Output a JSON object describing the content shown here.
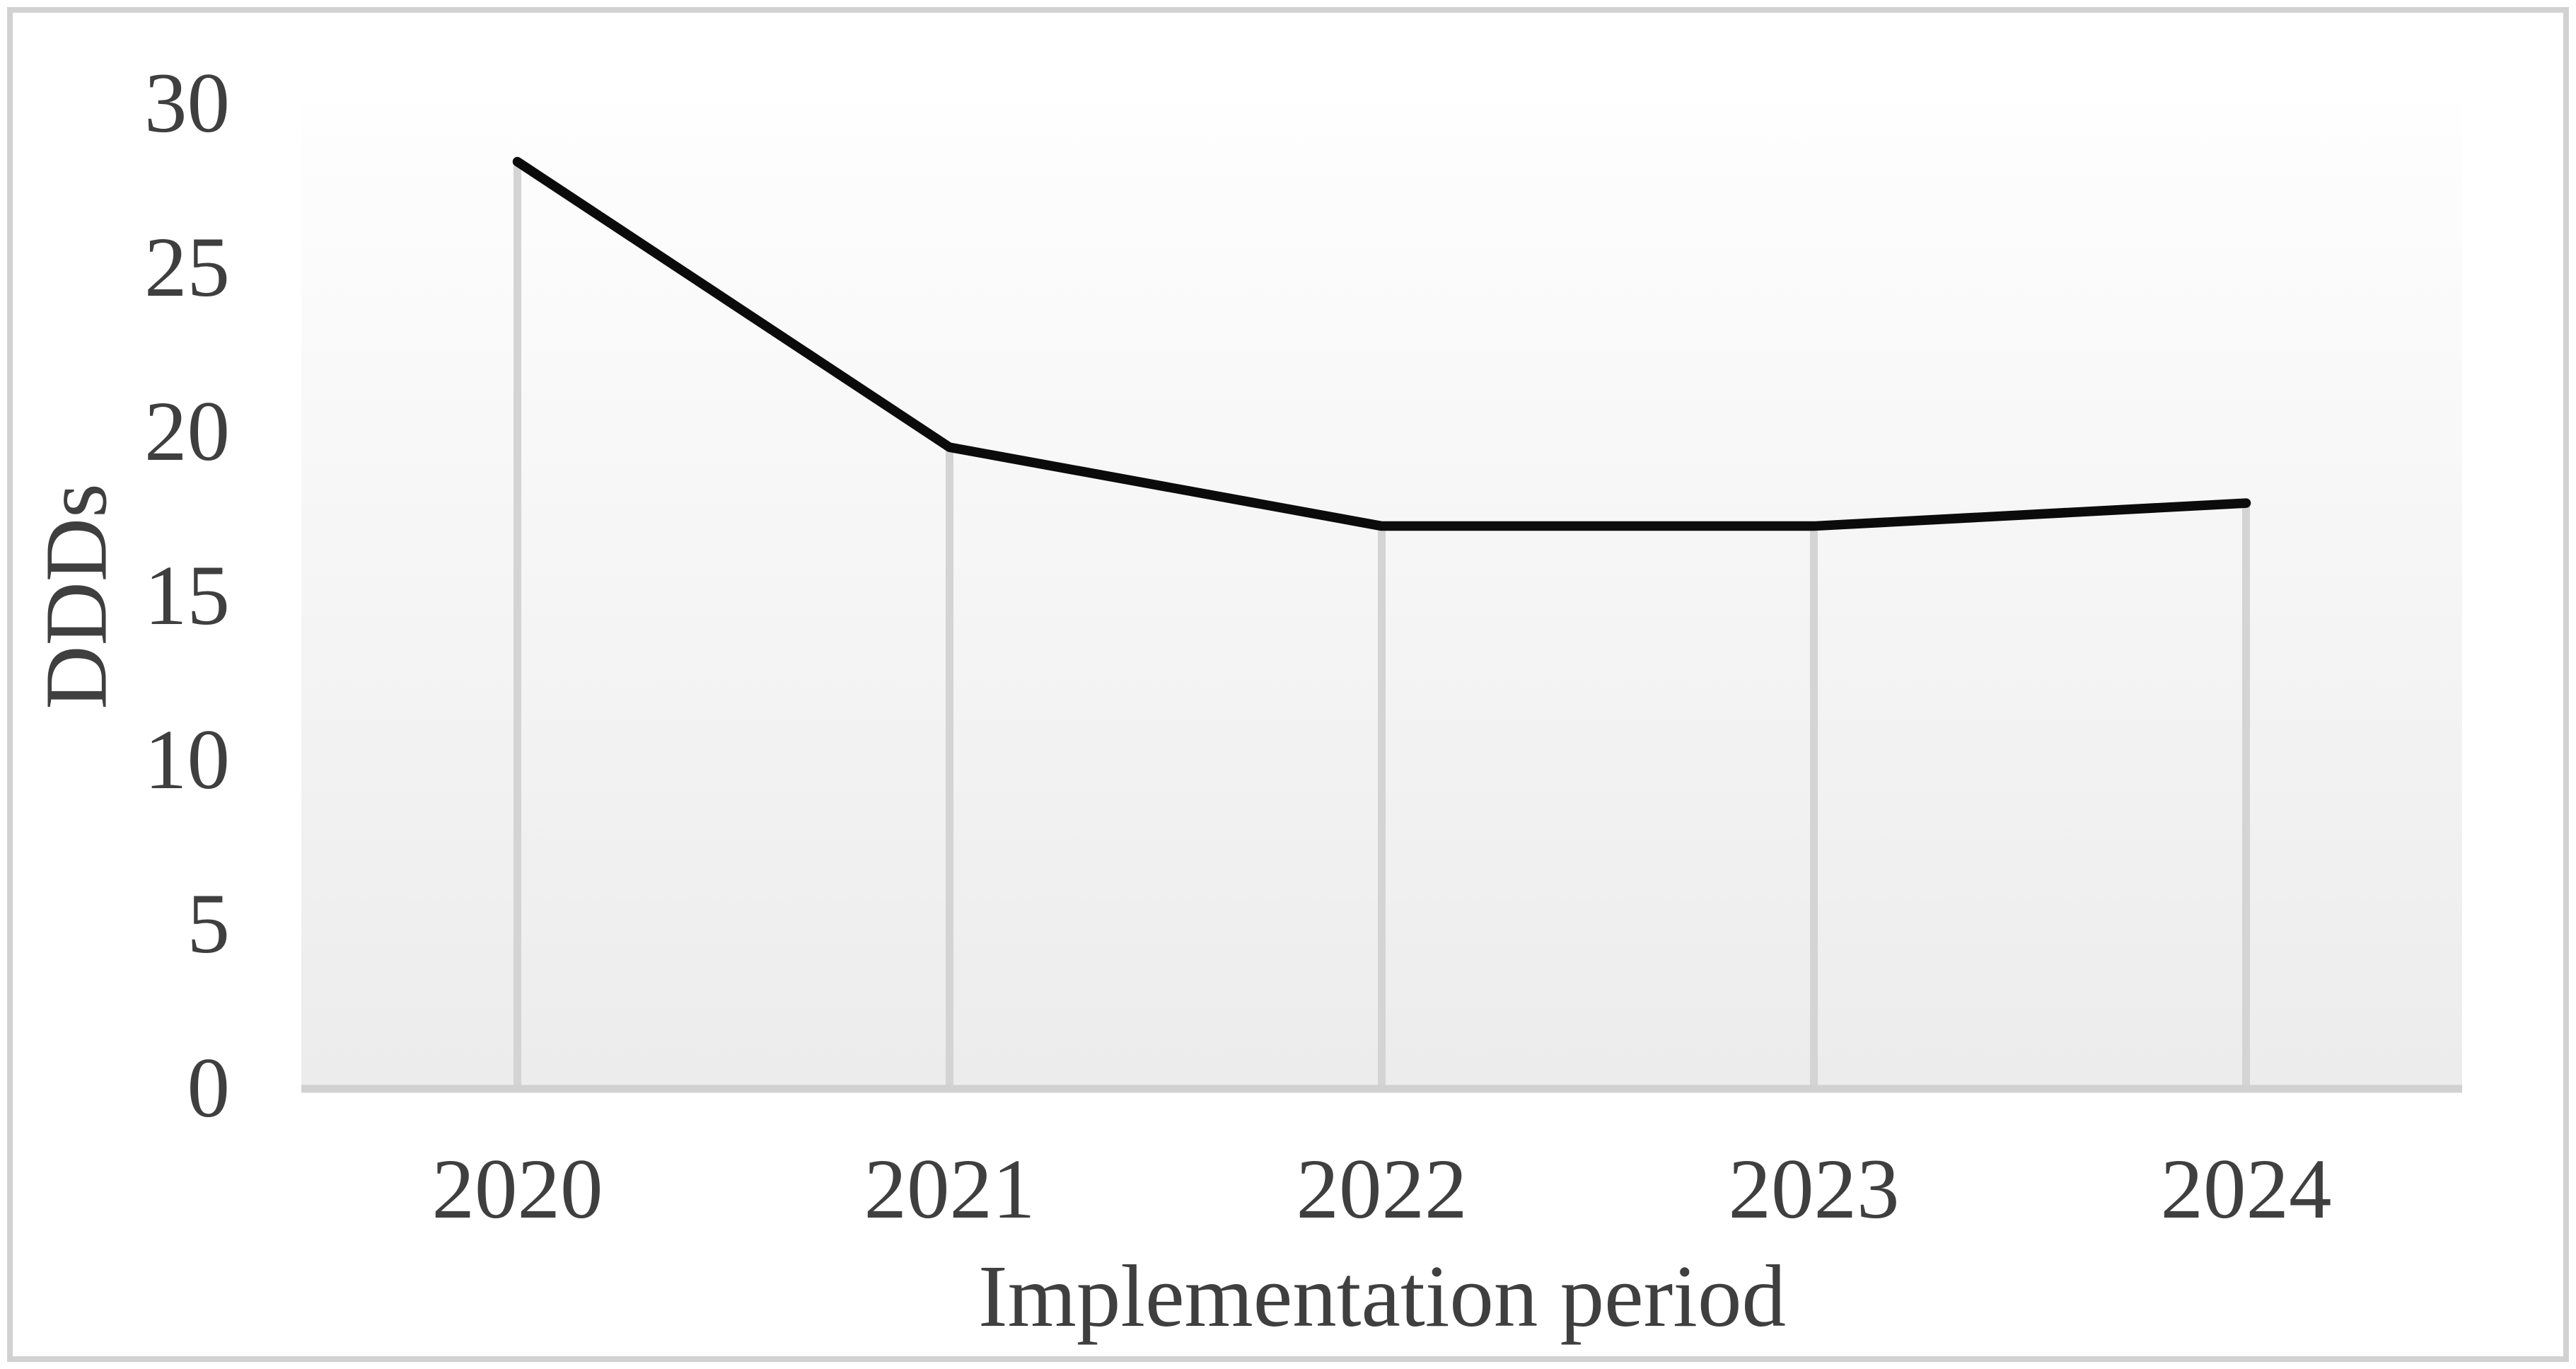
{
  "figure": {
    "background_color": "#ffffff",
    "border_color": "#d2d2d2"
  },
  "chart_data": {
    "type": "line",
    "title": "",
    "categories": [
      "2020",
      "2021",
      "2022",
      "2023",
      "2024"
    ],
    "series": [
      {
        "name": "DDDs",
        "values": [
          28.2,
          19.5,
          17.1,
          17.1,
          17.8
        ]
      }
    ],
    "xlabel": "Implementation period",
    "ylabel": "DDDs",
    "ylim": [
      0,
      30
    ],
    "yticks": [
      0,
      5,
      10,
      15,
      20,
      25,
      30
    ],
    "ytick_labels": [
      "0",
      "5",
      "10",
      "15",
      "20",
      "25",
      "30"
    ],
    "grid": "vertical-drop-lines-per-category",
    "legend_position": "none",
    "line_color": "#0b0b0b",
    "text_color": "#3f3f3f",
    "dropline_color": "#d4d4d4",
    "axis_line_color": "#d1d1d1",
    "plot_fill_top": "#fefefe",
    "plot_fill_bottom": "#ececec"
  }
}
